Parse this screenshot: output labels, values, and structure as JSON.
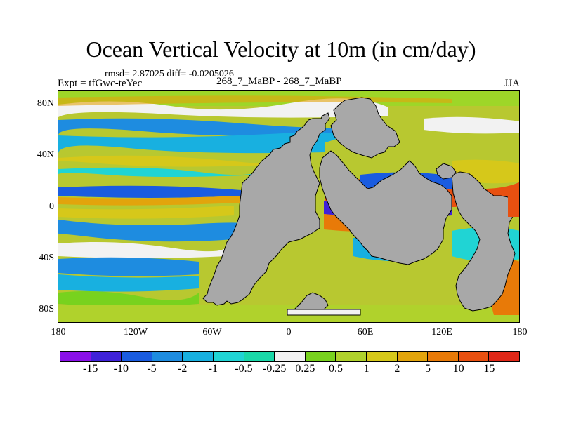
{
  "title": "Ocean Vertical Velocity at 10m (in cm/day)",
  "stats": "rmsd= 2.87025 diff= -0.0205026",
  "experiment": "Expt = tfGwc-teYec",
  "comparison": "268_7_MaBP - 268_7_MaBP",
  "season": "JJA",
  "y_axis": [
    "80N",
    "40N",
    "0",
    "40S",
    "80S"
  ],
  "x_axis": [
    "180",
    "120W",
    "60W",
    "0",
    "60E",
    "120E",
    "180"
  ],
  "colorbar": {
    "labels": [
      "-15",
      "-10",
      "-5",
      "-2",
      "-1",
      "-0.5",
      "-0.25",
      "0.25",
      "0.5",
      "1",
      "2",
      "5",
      "10",
      "15"
    ],
    "colors": [
      "#8a10e8",
      "#3f22d8",
      "#1a5ce0",
      "#1e8ce0",
      "#18b0e0",
      "#20d4d4",
      "#1ad8a8",
      "#f2f2f2",
      "#78d21e",
      "#b0d22c",
      "#d6c81a",
      "#e2a40c",
      "#e87a08",
      "#e85010",
      "#e02818"
    ]
  },
  "land_color": "#a8a8a8"
}
